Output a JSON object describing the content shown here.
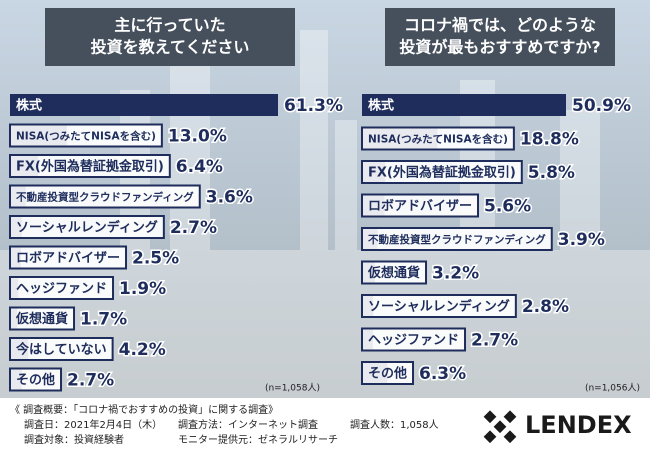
{
  "chart_data": [
    {
      "type": "bar",
      "title": [
        "主に行っていた",
        "投資を教えてください"
      ],
      "categories": [
        "株式",
        "NISA(つみたてNISAを含む)",
        "FX(外国為替証拠金取引)",
        "不動産投資型クラウドファンディング",
        "ソーシャルレンディング",
        "ロボアドバイザー",
        "ヘッジファンド",
        "仮想通貨",
        "今はしていない",
        "その他"
      ],
      "values": [
        61.3,
        13.0,
        6.4,
        3.6,
        2.7,
        2.5,
        1.9,
        1.7,
        4.2,
        2.7
      ],
      "value_labels": [
        "61.3%",
        "13.0%",
        "6.4%",
        "3.6%",
        "2.7%",
        "2.5%",
        "1.9%",
        "1.7%",
        "4.2%",
        "2.7%"
      ],
      "color": "#1e2d5c",
      "note": "(n=1,058人)"
    },
    {
      "type": "bar",
      "title": [
        "コロナ禍では、どのような",
        "投資が最もおすすめですか?"
      ],
      "categories": [
        "株式",
        "NISA(つみたてNISAを含む)",
        "FX(外国為替証拠金取引)",
        "ロボアドバイザー",
        "不動産投資型クラウドファンディング",
        "仮想通貨",
        "ソーシャルレンディング",
        "ヘッジファンド",
        "その他"
      ],
      "values": [
        50.9,
        18.8,
        5.8,
        5.6,
        3.9,
        3.2,
        2.8,
        2.7,
        6.3
      ],
      "value_labels": [
        "50.9%",
        "18.8%",
        "5.8%",
        "5.6%",
        "3.9%",
        "3.2%",
        "2.8%",
        "2.7%",
        "6.3%"
      ],
      "color": "#1e2d5c",
      "note": "(n=1,056人)"
    }
  ],
  "survey": {
    "heading": "《 調査概要：「コロナ禍でおすすめの投資」に関する調査》",
    "items": [
      "調査日：2021年2月4日（木）",
      "調査方法：インターネット調査",
      "調査人数：1,058人",
      "調査対象：投資経験者",
      "モニター提供元：ゼネラルリサーチ"
    ]
  },
  "logo": "LENDEX"
}
